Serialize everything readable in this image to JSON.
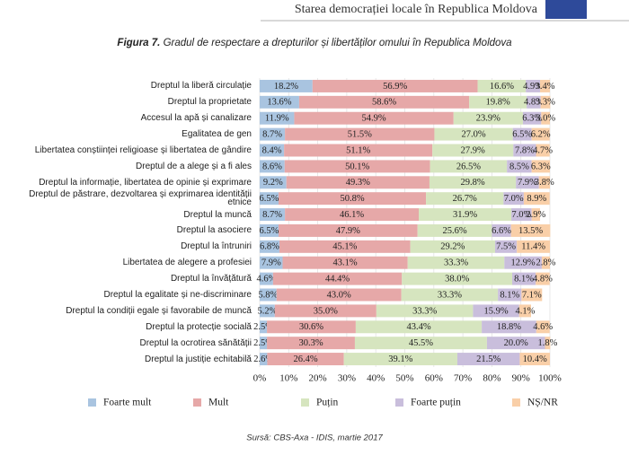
{
  "header": "Starea democrației locale în Republica Moldova",
  "chart_data": {
    "type": "stacked-bar-horizontal",
    "figure_label": "Figura 7.",
    "title": "Gradul de respectare a drepturilor și libertăților omului în Republica Moldova",
    "categories": [
      "Dreptul la liberă circulație",
      "Dreptul la proprietate",
      "Accesul la apă și canalizare",
      "Egalitatea de gen",
      "Libertatea conștiinței religioase și libertatea de gândire",
      "Dreptul de a alege și a fi ales",
      "Dreptul la informație, libertatea de opinie și exprimare",
      "Dreptul de păstrare, dezvoltarea și exprimarea identității etnice",
      "Dreptul la muncă",
      "Dreptul la asociere",
      "Dreptul la întruniri",
      "Libertatea de alegere a profesiei",
      "Dreptul la învățătură",
      "Dreptul la egalitate și ne-discriminare",
      "Dreptul la condiții egale și favorabile de muncă",
      "Dreptul la protecție socială",
      "Dreptul la ocrotirea sănătății",
      "Dreptul la justiție echitabilă"
    ],
    "series": [
      {
        "name": "Foarte mult",
        "color": "#a9c4e0",
        "values": [
          18.2,
          13.6,
          11.9,
          8.7,
          8.4,
          8.6,
          9.2,
          6.5,
          8.7,
          6.5,
          6.8,
          7.9,
          4.6,
          5.8,
          5.2,
          2.5,
          2.5,
          2.6
        ],
        "value_labels": [
          "18.2%",
          "13.6%",
          "11.9%",
          "8.7%",
          "8.4%",
          "8.6%",
          "9.2%",
          "6.5%",
          "8.7%",
          "6.5%",
          "6.8%",
          "7.9%",
          "4.6%",
          "5.8%",
          "5.2%",
          "2.5%",
          "2.5%",
          "2.6%"
        ]
      },
      {
        "name": "Mult",
        "color": "#e6a8a8",
        "values": [
          56.9,
          58.6,
          54.9,
          51.5,
          51.1,
          50.1,
          49.3,
          50.8,
          46.1,
          47.9,
          45.1,
          43.1,
          44.4,
          43.0,
          35.0,
          30.6,
          30.3,
          26.4
        ],
        "value_labels": [
          "56.9%",
          "58.6%",
          "54.9%",
          "51.5%",
          "51.1%",
          "50.1%",
          "49.3%",
          "50.8%",
          "46.1%",
          "47.9%",
          "45.1%",
          "43.1%",
          "44.4%",
          "43.0%",
          "35.0%",
          "30.6%",
          "30.3%",
          "26.4%"
        ]
      },
      {
        "name": "Puțin",
        "color": "#d6e5bf",
        "values": [
          16.6,
          19.8,
          23.9,
          27.0,
          27.9,
          26.5,
          29.8,
          26.7,
          31.9,
          25.6,
          29.2,
          33.3,
          38.0,
          33.3,
          33.3,
          43.4,
          45.5,
          39.1
        ],
        "value_labels": [
          "16.6%",
          "19.8%",
          "23.9%",
          "27.0%",
          "27.9%",
          "26.5%",
          "29.8%",
          "26.7%",
          "31.9%",
          "25.6%",
          "29.2%",
          "33.3%",
          "38.0%",
          "33.3%",
          "33.3%",
          "43.4%",
          "45.5%",
          "39.1%"
        ]
      },
      {
        "name": "Foarte puțin",
        "color": "#c9bedc",
        "values": [
          4.9,
          4.8,
          6.3,
          6.5,
          7.8,
          8.5,
          7.9,
          7.0,
          7.0,
          6.6,
          7.5,
          12.9,
          8.1,
          8.1,
          15.9,
          18.8,
          20.0,
          21.5
        ],
        "value_labels": [
          "4.9%",
          "4.8%",
          "6.3%",
          "6.5%",
          "7.8%",
          "8.5%",
          "7.9%",
          "7.0%",
          "7.0%",
          "6.6%",
          "7.5%",
          "12.9%",
          "8.1%",
          "8.1%",
          "15.9%",
          "18.8%",
          "20.0%",
          "21.5%"
        ]
      },
      {
        "name": "NȘ/NR",
        "color": "#f9cfa8",
        "values": [
          3.4,
          3.3,
          3.0,
          6.2,
          4.7,
          6.3,
          3.8,
          8.9,
          2.9,
          13.5,
          11.4,
          2.8,
          4.8,
          7.1,
          4.1,
          4.6,
          1.8,
          10.4
        ],
        "value_labels": [
          "3.4%",
          "3.3%",
          "3.0%",
          "6.2%",
          "4.7%",
          "6.3%",
          "3.8%",
          "8.9%",
          "2.9%",
          "13.5%",
          "11.4%",
          "2.8%",
          "4.8%",
          "7.1%",
          "4.1%",
          "4.6%",
          "1.8%",
          "10.4%"
        ]
      }
    ],
    "xlim": [
      0,
      100
    ],
    "xticks": [
      {
        "value": 0,
        "label": "0%"
      },
      {
        "value": 10,
        "label": "10%"
      },
      {
        "value": 20,
        "label": "20%"
      },
      {
        "value": 30,
        "label": "30%"
      },
      {
        "value": 40,
        "label": "40%"
      },
      {
        "value": 50,
        "label": "50%"
      },
      {
        "value": 60,
        "label": "60%"
      },
      {
        "value": 70,
        "label": "70%"
      },
      {
        "value": 80,
        "label": "80%"
      },
      {
        "value": 90,
        "label": "90%"
      },
      {
        "value": 100,
        "label": "100%"
      }
    ],
    "grid": true,
    "source": "Sursă: CBS-Axa - IDIS, martie 2017"
  }
}
